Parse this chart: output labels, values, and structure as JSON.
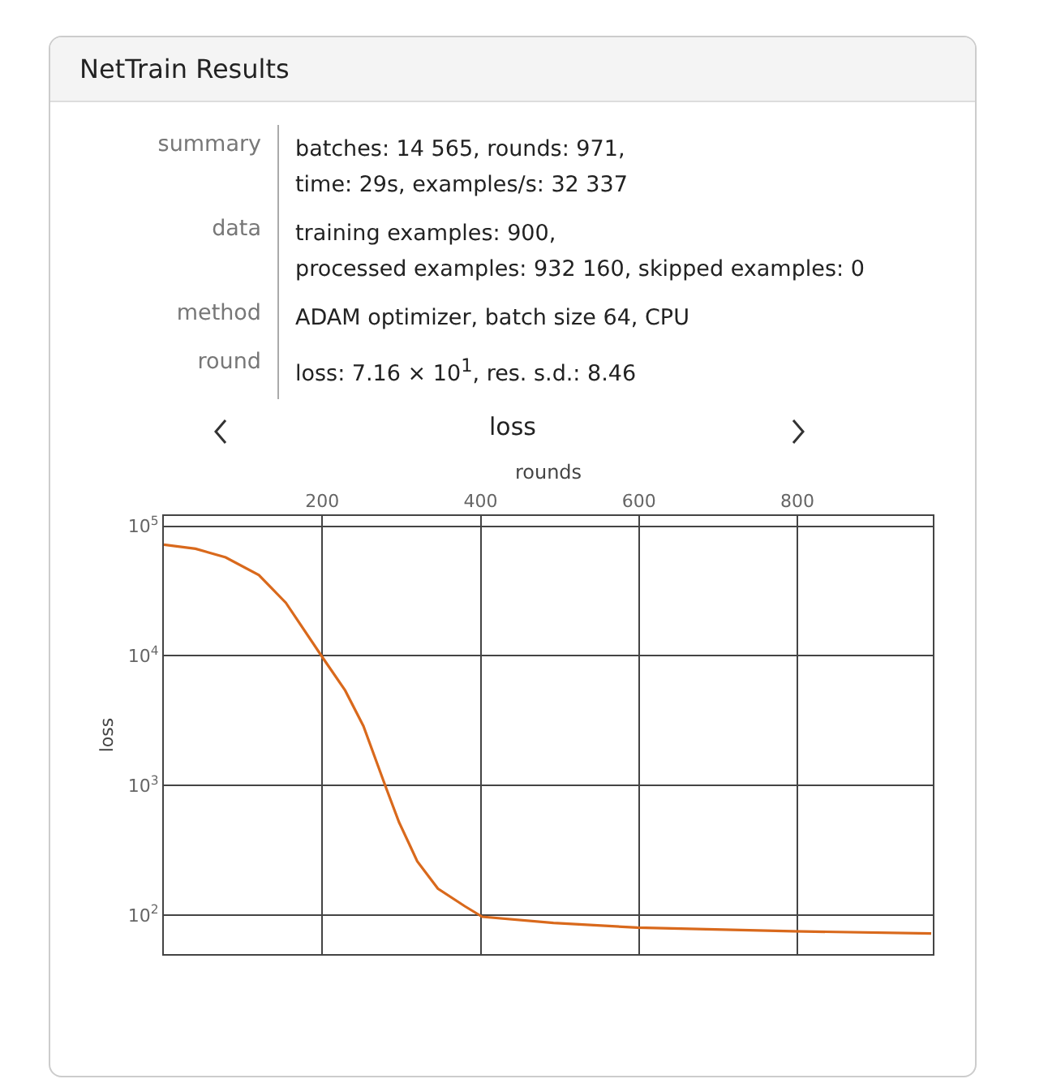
{
  "chart_data": [
    {
      "type": "other",
      "title": "NetTrain Results",
      "categories": [
        "summary",
        "data",
        "method",
        "round"
      ],
      "annotations": [
        "batches: 14 565, rounds: 971,\ntime: 29s, examples/s: 32 337",
        "training examples: 900,\nprocessed examples: 932 160, skipped examples: 0",
        "ADAM optimizer, batch size 64, CPU",
        "loss: 7.16 × 10$^{1}$, res. s.d.: 8.46"
      ]
    },
    {
      "type": "line",
      "title": "loss",
      "xlabel": "rounds",
      "ylabel": "loss",
      "x": [
        0,
        40,
        78,
        120,
        154,
        201,
        229,
        252,
        280,
        297,
        320,
        346,
        380,
        402,
        492,
        598,
        794,
        969
      ],
      "series": [
        {
          "color": "#d9691c",
          "values": [
            72100,
            67000,
            57500,
            42000,
            25700,
            9600,
            5400,
            2870,
            980,
            520,
            260,
            160,
            117,
            97,
            87,
            80,
            75,
            72
          ]
        }
      ],
      "xlim": [
        0,
        971
      ],
      "xticks": [
        200,
        400,
        600,
        800
      ],
      "ylim": [
        50,
        120000
      ],
      "yticks": [
        {
          "value": 100,
          "label": "10$^{2}$"
        },
        {
          "value": 1000,
          "label": "10$^{3}$"
        },
        {
          "value": 10000,
          "label": "10$^{4}$"
        },
        {
          "value": 100000,
          "label": "10$^{5}$"
        }
      ],
      "log": "y",
      "grid": true,
      "marker": "none",
      "line_style": "solid"
    }
  ]
}
